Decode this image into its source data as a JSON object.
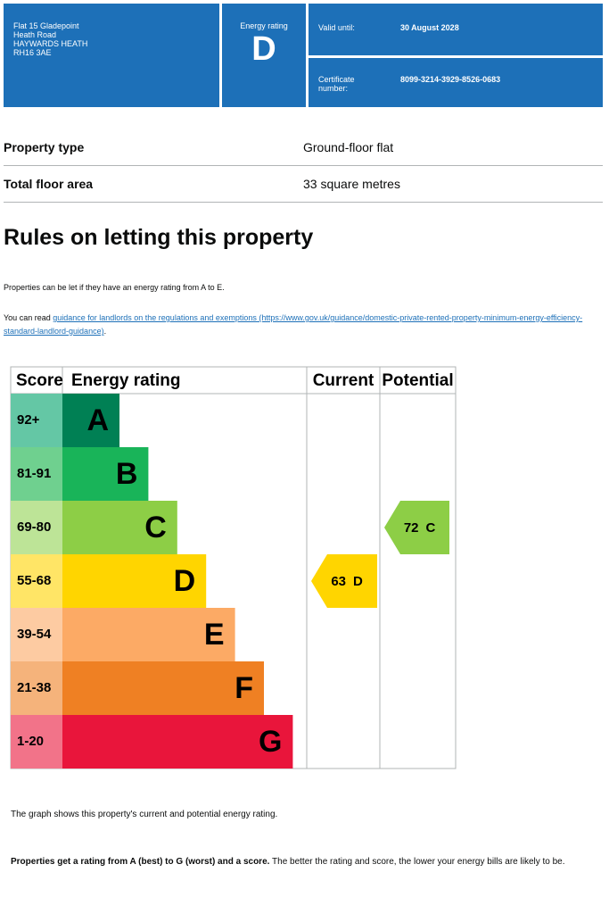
{
  "header": {
    "address": [
      "Flat 15 Gladepoint",
      "Heath Road",
      "HAYWARDS HEATH",
      "RH16 3AE"
    ],
    "rating_label": "Energy rating",
    "rating": "D",
    "valid_label": "Valid until:",
    "valid_date": "30 August 2028",
    "certificate_label": "Certificate number:",
    "certificate_number": "8099-3214-3929-8526-0683"
  },
  "property": {
    "rows": [
      [
        "Property type",
        "Ground-floor flat"
      ],
      [
        "Total floor area",
        "33 square metres"
      ]
    ]
  },
  "section_title": "Rules on letting this property",
  "paragraph_1": "Properties can be let if they have an energy rating from A to E.",
  "paragraph_2": {
    "prefix": "You can read ",
    "link": "guidance for landlords on the regulations and exemptions (https://www.gov.uk/guidance/domestic-private-rented-property-minimum-energy-efficiency-standard-landlord-guidance)",
    "suffix": "."
  },
  "rating_chart": {
    "headers": [
      "Score",
      "Energy rating",
      "Current",
      "Potential"
    ],
    "bands": [
      {
        "score": "92+",
        "letter": "A",
        "color": "#008054",
        "tint": "#64c7a5"
      },
      {
        "score": "81-91",
        "letter": "B",
        "color": "#19b459",
        "tint": "#6fd08f"
      },
      {
        "score": "69-80",
        "letter": "C",
        "color": "#8dce46",
        "tint": "#bde497"
      },
      {
        "score": "55-68",
        "letter": "D",
        "color": "#ffd500",
        "tint": "#ffe566"
      },
      {
        "score": "39-54",
        "letter": "E",
        "color": "#fcaa65",
        "tint": "#fdcba2"
      },
      {
        "score": "21-38",
        "letter": "F",
        "color": "#ef8023",
        "tint": "#f5b37b"
      },
      {
        "score": "1-20",
        "letter": "G",
        "color": "#e9153b",
        "tint": "#f27389"
      }
    ],
    "current": {
      "score": 63,
      "letter": "D"
    },
    "potential": {
      "score": 72,
      "letter": "C"
    }
  },
  "note": "The graph shows this property's current and potential energy rating.",
  "footer": {
    "bold": "Properties get a rating from A (best) to G (worst) and a score.",
    "regular": " The better the rating and score, the lower your energy bills are likely to be."
  }
}
